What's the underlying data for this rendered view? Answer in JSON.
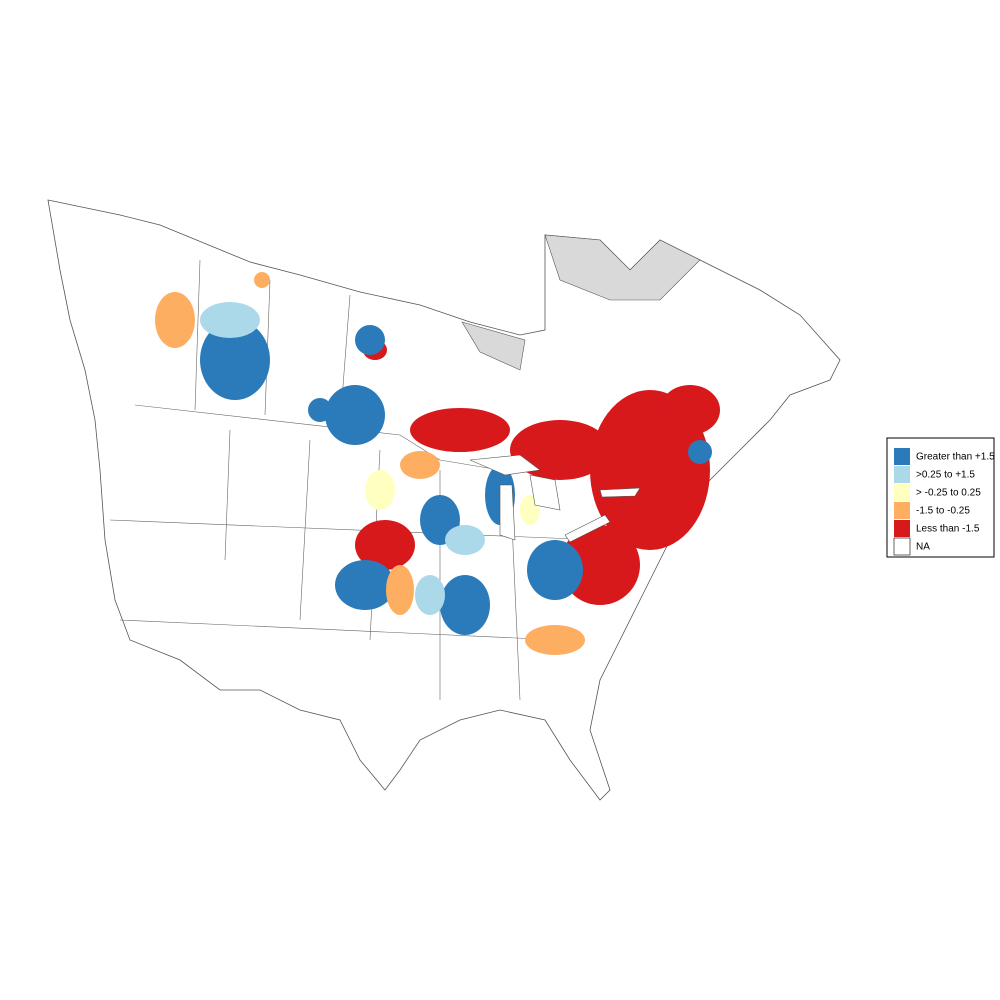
{
  "legend": {
    "items": [
      {
        "label": "Greater than +1.5",
        "color": "#2b7bba"
      },
      {
        "label": ">0.25 to +1.5",
        "color": "#abd9e9"
      },
      {
        "label": "> -0.25 to 0.25",
        "color": "#ffffbf"
      },
      {
        "label": "-1.5 to -0.25",
        "color": "#fdae61"
      },
      {
        "label": "Less than -1.5",
        "color": "#d7191c"
      },
      {
        "label": "NA",
        "color": "#ffffff"
      }
    ]
  }
}
